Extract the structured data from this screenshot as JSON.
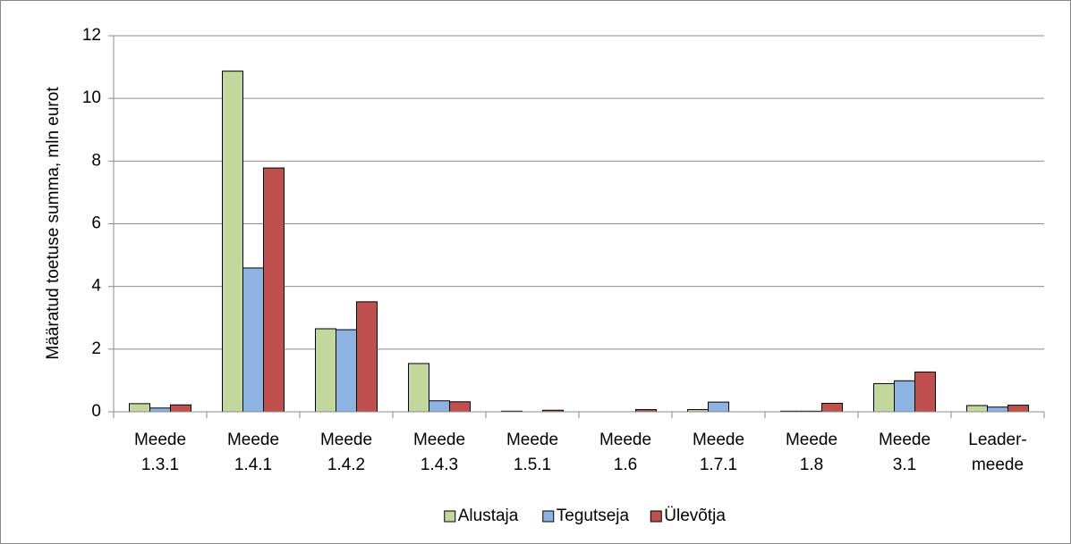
{
  "chart_data": {
    "type": "bar",
    "y_label": "Määratud toetuse summa, mln eurot",
    "categories": [
      [
        "Meede",
        "1.3.1"
      ],
      [
        "Meede",
        "1.4.1"
      ],
      [
        "Meede",
        "1.4.2"
      ],
      [
        "Meede",
        "1.4.3"
      ],
      [
        "Meede",
        "1.5.1"
      ],
      [
        "Meede",
        "1.6"
      ],
      [
        "Meede",
        "1.7.1"
      ],
      [
        "Meede",
        "1.8"
      ],
      [
        "Meede",
        "3.1"
      ],
      [
        "Leader-",
        "meede"
      ]
    ],
    "series": [
      {
        "name": "Alustaja",
        "color": "#c3d69b",
        "values": [
          0.26,
          10.87,
          2.65,
          1.54,
          0.02,
          0,
          0.07,
          0.02,
          0.9,
          0.2
        ]
      },
      {
        "name": "Tegutseja",
        "color": "#8db3e2",
        "values": [
          0.12,
          4.59,
          2.62,
          0.35,
          0,
          0,
          0.31,
          0.02,
          0.99,
          0.15
        ]
      },
      {
        "name": "Ülevõtja",
        "color": "#c0504d",
        "values": [
          0.22,
          7.78,
          3.51,
          0.32,
          0.05,
          0.07,
          0,
          0.27,
          1.27,
          0.21
        ]
      }
    ],
    "ylim": [
      0,
      12
    ],
    "yticks": [
      0,
      2,
      4,
      6,
      8,
      10,
      12
    ],
    "grid": true,
    "legend": "bottom"
  }
}
